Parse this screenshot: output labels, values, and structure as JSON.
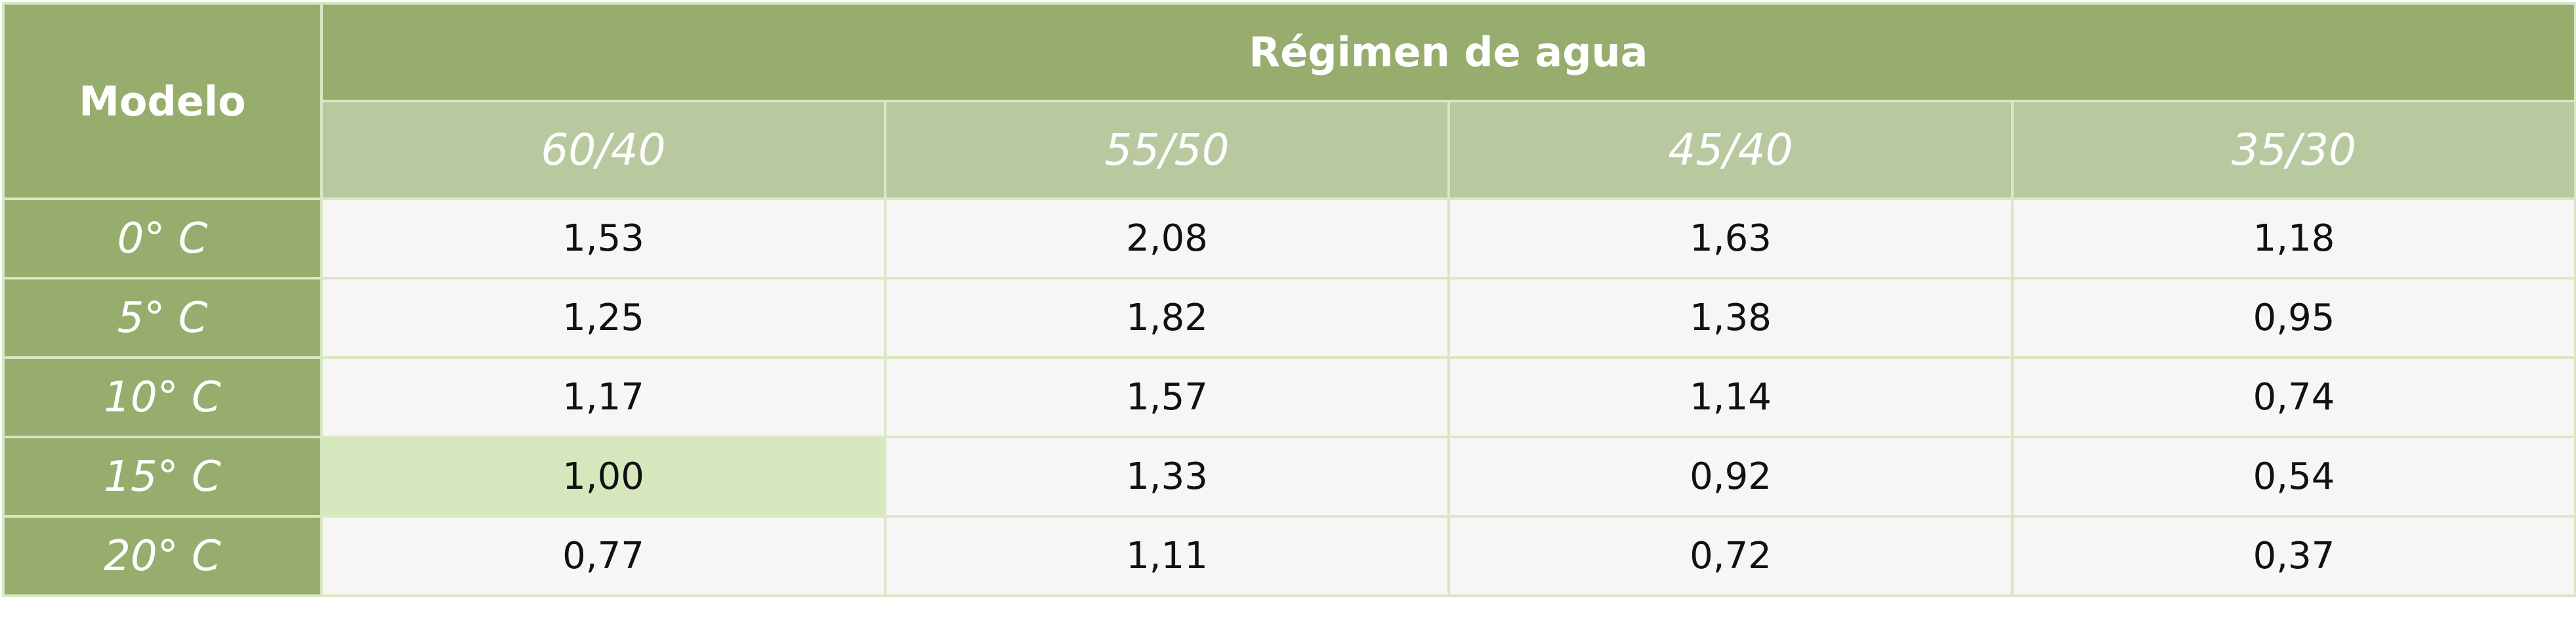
{
  "header": {
    "model": "Modelo",
    "group": "Régimen de agua",
    "columns": [
      "60/40",
      "55/50",
      "45/40",
      "35/30"
    ]
  },
  "rows": [
    {
      "label": "0° C",
      "values": [
        "1,53",
        "2,08",
        "1,63",
        "1,18"
      ]
    },
    {
      "label": "5° C",
      "values": [
        "1,25",
        "1,82",
        "1,38",
        "0,95"
      ]
    },
    {
      "label": "10° C",
      "values": [
        "1,17",
        "1,57",
        "1,14",
        "0,74"
      ]
    },
    {
      "label": "15° C",
      "values": [
        "1,00",
        "1,33",
        "0,92",
        "0,54"
      ]
    },
    {
      "label": "20° C",
      "values": [
        "0,77",
        "1,11",
        "0,72",
        "0,37"
      ]
    }
  ]
}
